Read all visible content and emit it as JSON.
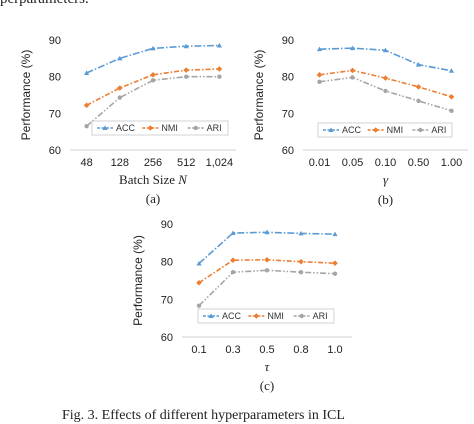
{
  "page": {
    "top_text": "perparameters.",
    "bottom_text": "Fig. 3.  Effects of different hyperparameters in ICL"
  },
  "colors": {
    "ACC": "#5b9bd5",
    "NMI": "#ed7d31",
    "ARI": "#a5a5a5"
  },
  "chart_data": [
    {
      "type": "line",
      "caption": "(a)",
      "xlabel": "Batch Size",
      "xlabel_var": "N",
      "ylabel": "Performance (%)",
      "ylim": [
        60,
        90
      ],
      "yticks": [
        60,
        70,
        80,
        90
      ],
      "categories": [
        "48",
        "128",
        "256",
        "512",
        "1,024"
      ],
      "legend": "bottom",
      "series": [
        {
          "name": "ACC",
          "values": [
            81.0,
            85.0,
            87.7,
            88.3,
            88.5
          ]
        },
        {
          "name": "NMI",
          "values": [
            72.2,
            76.9,
            80.5,
            81.8,
            82.1
          ]
        },
        {
          "name": "ARI",
          "values": [
            66.5,
            74.3,
            79.0,
            80.0,
            80.0
          ]
        }
      ]
    },
    {
      "type": "line",
      "caption": "(b)",
      "xlabel": "",
      "xlabel_var": "γ",
      "ylabel": "Performance (%)",
      "ylim": [
        60,
        90
      ],
      "yticks": [
        60,
        70,
        80,
        90
      ],
      "categories": [
        "0.01",
        "0.05",
        "0.10",
        "0.50",
        "1.00"
      ],
      "legend": "bottom",
      "series": [
        {
          "name": "ACC",
          "values": [
            87.5,
            87.8,
            87.2,
            83.3,
            81.6
          ]
        },
        {
          "name": "NMI",
          "values": [
            80.5,
            81.7,
            79.6,
            77.2,
            74.5
          ]
        },
        {
          "name": "ARI",
          "values": [
            78.6,
            79.8,
            76.1,
            73.4,
            70.7
          ]
        }
      ]
    },
    {
      "type": "line",
      "caption": "(c)",
      "xlabel": "",
      "xlabel_var": "τ",
      "ylabel": "Performance (%)",
      "ylim": [
        60,
        90
      ],
      "yticks": [
        60,
        70,
        80,
        90
      ],
      "categories": [
        "0.1",
        "0.3",
        "0.5",
        "0.8",
        "1.0"
      ],
      "legend": "bottom",
      "series": [
        {
          "name": "ACC",
          "values": [
            79.5,
            87.6,
            87.8,
            87.5,
            87.3
          ]
        },
        {
          "name": "NMI",
          "values": [
            74.4,
            80.4,
            80.5,
            80.0,
            79.6
          ]
        },
        {
          "name": "ARI",
          "values": [
            68.3,
            77.2,
            77.7,
            77.2,
            76.8
          ]
        }
      ]
    }
  ]
}
